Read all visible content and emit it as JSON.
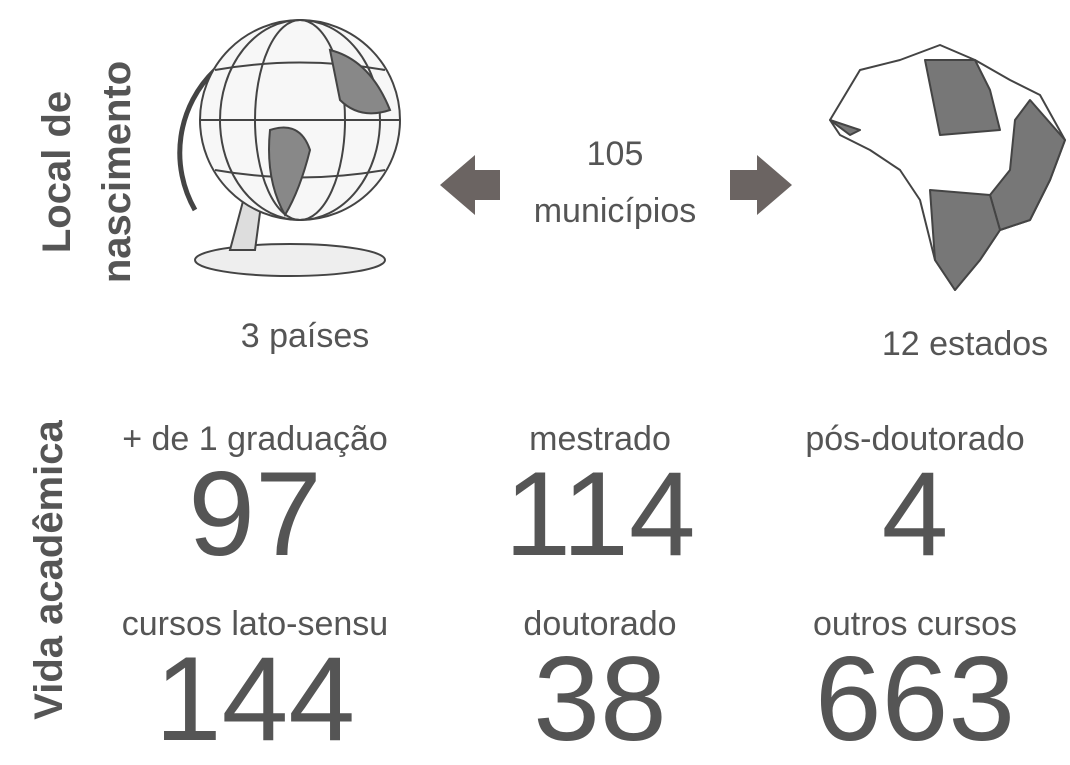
{
  "birthplace": {
    "heading": [
      "Local de",
      "nascimento"
    ],
    "municipalities": {
      "count": 105,
      "label": "municípios"
    },
    "countries": "3 países",
    "states": "12 estados"
  },
  "academic": {
    "heading": "Vida acadêmica",
    "stats": [
      {
        "label": "+ de 1 graduação",
        "value": 97
      },
      {
        "label": "mestrado",
        "value": 114
      },
      {
        "label": "pós-doutorado",
        "value": 4
      },
      {
        "label": "cursos lato-sensu",
        "value": 144
      },
      {
        "label": "doutorado",
        "value": 38
      },
      {
        "label": "outros cursos",
        "value": 663
      }
    ]
  }
}
